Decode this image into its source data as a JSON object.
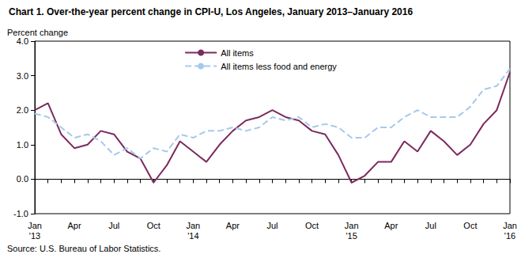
{
  "chart_data": {
    "type": "line",
    "title": "Chart 1. Over-the-year percent change in CPI-U, Los Angeles, January 2013–January 2016",
    "y_label": "Percent change",
    "source": "Source: U.S. Bureau of Labor Statistics.",
    "categories": [
      "Jan\n'13",
      null,
      null,
      "Apr",
      null,
      null,
      "Jul",
      null,
      null,
      "Oct",
      null,
      null,
      "Jan\n'14",
      null,
      null,
      "Apr",
      null,
      null,
      "Jul",
      null,
      null,
      "Oct",
      null,
      null,
      "Jan\n'15",
      null,
      null,
      "Apr",
      null,
      null,
      "Jul",
      null,
      null,
      "Oct",
      null,
      null,
      "Jan\n'16"
    ],
    "series": [
      {
        "name": "All items",
        "color": "#7b2a5e",
        "line_style": "solid",
        "values": [
          2.0,
          2.2,
          1.3,
          0.9,
          1.0,
          1.4,
          1.3,
          0.8,
          0.6,
          -0.1,
          0.4,
          1.1,
          0.8,
          0.5,
          1.0,
          1.4,
          1.7,
          1.8,
          2.0,
          1.8,
          1.7,
          1.4,
          1.3,
          0.7,
          -0.1,
          0.1,
          0.5,
          0.5,
          1.1,
          0.8,
          1.4,
          1.1,
          0.7,
          1.0,
          1.6,
          2.0,
          3.1
        ]
      },
      {
        "name": "All items less food and energy",
        "color": "#a6c9ec",
        "line_style": "dashed",
        "values": [
          1.9,
          1.8,
          1.5,
          1.2,
          1.3,
          1.1,
          0.7,
          0.9,
          0.6,
          0.9,
          0.8,
          1.3,
          1.2,
          1.4,
          1.4,
          1.5,
          1.4,
          1.5,
          1.8,
          1.7,
          1.8,
          1.5,
          1.6,
          1.5,
          1.2,
          1.2,
          1.5,
          1.5,
          1.8,
          2.0,
          1.8,
          1.8,
          1.8,
          2.1,
          2.6,
          2.7,
          3.2
        ]
      }
    ],
    "ylim": [
      -1,
      4
    ],
    "yticks": [
      {
        "value": -1,
        "label": "-1.0"
      },
      {
        "value": 0,
        "label": "0.0"
      },
      {
        "value": 1,
        "label": "1.0"
      },
      {
        "value": 2,
        "label": "2.0"
      },
      {
        "value": 3,
        "label": "3.0"
      },
      {
        "value": 4,
        "label": "4.0"
      }
    ],
    "grid": false,
    "legend": "top"
  }
}
